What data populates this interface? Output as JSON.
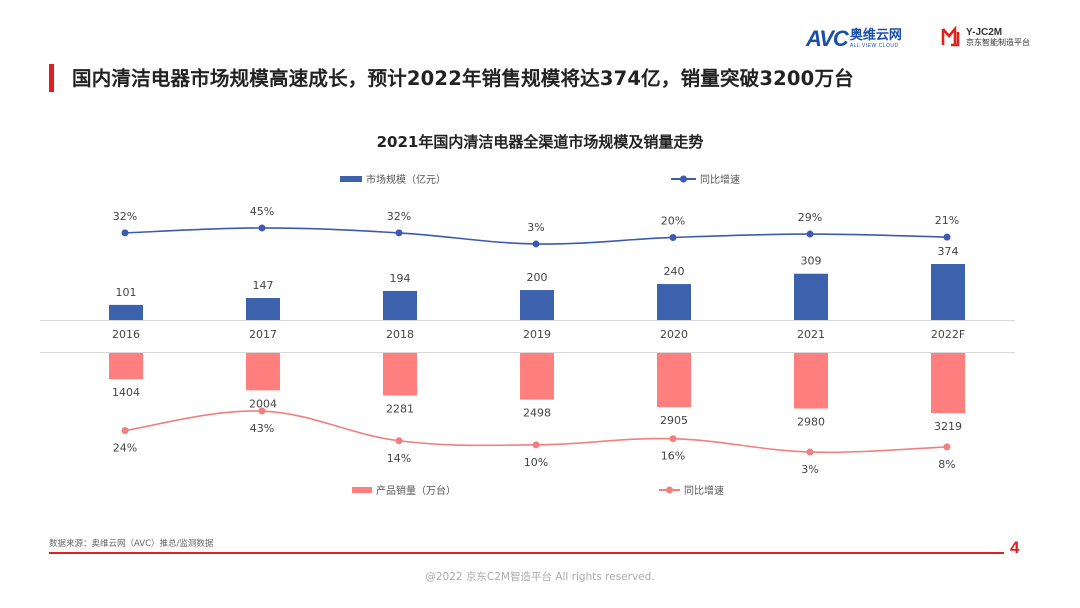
{
  "header": {
    "avc_logo_text": "AVC",
    "avc_logo_cn": "奥维云网",
    "avc_logo_sub": "ALL VIEW CLOUD",
    "c2m_logo_title": "Y-JC2M",
    "c2m_logo_sub": "京东智能制造平台",
    "page_title": "国内清洁电器市场规模高速成长，预计2022年销售规模将达374亿，销量突破3200万台"
  },
  "colors": {
    "scale_bar": "#3c62ad",
    "scale_line": "#3c5ab0",
    "volume_bar": "#ff7f7f",
    "volume_line": "#f08080",
    "accent_red": "#e02020"
  },
  "chart_data": {
    "type": "bar",
    "title": "2021年国内清洁电器全渠道市场规模及销量走势",
    "categories": [
      "2016",
      "2017",
      "2018",
      "2019",
      "2020",
      "2021",
      "2022F"
    ],
    "series": [
      {
        "name": "市场规模（亿元）",
        "kind": "bar",
        "values": [
          101,
          147,
          194,
          200,
          240,
          309,
          374
        ]
      },
      {
        "name": "同比增速",
        "kind": "line",
        "values": [
          32,
          45,
          32,
          3,
          20,
          29,
          21
        ],
        "labels": [
          "32%",
          "45%",
          "32%",
          "3%",
          "20%",
          "29%",
          "21%"
        ]
      },
      {
        "name": "产品销量（万台）",
        "kind": "bar",
        "direction": "down",
        "values": [
          1404,
          2004,
          2281,
          2498,
          2905,
          2980,
          3219
        ]
      },
      {
        "name": "同比增速",
        "kind": "line",
        "values": [
          24,
          43,
          14,
          10,
          16,
          3,
          8
        ],
        "labels": [
          "24%",
          "43%",
          "14%",
          "10%",
          "16%",
          "3%",
          "8%"
        ]
      }
    ],
    "legend": {
      "top": [
        "市场规模（亿元）",
        "同比增速"
      ],
      "bottom": [
        "产品销量（万台）",
        "同比增速"
      ]
    }
  },
  "footer": {
    "source": "数据来源：奥维云网（AVC）推总/监测数据",
    "page_number": "4",
    "copyright": "@2022 京东C2M智造平台  All rights reserved."
  }
}
